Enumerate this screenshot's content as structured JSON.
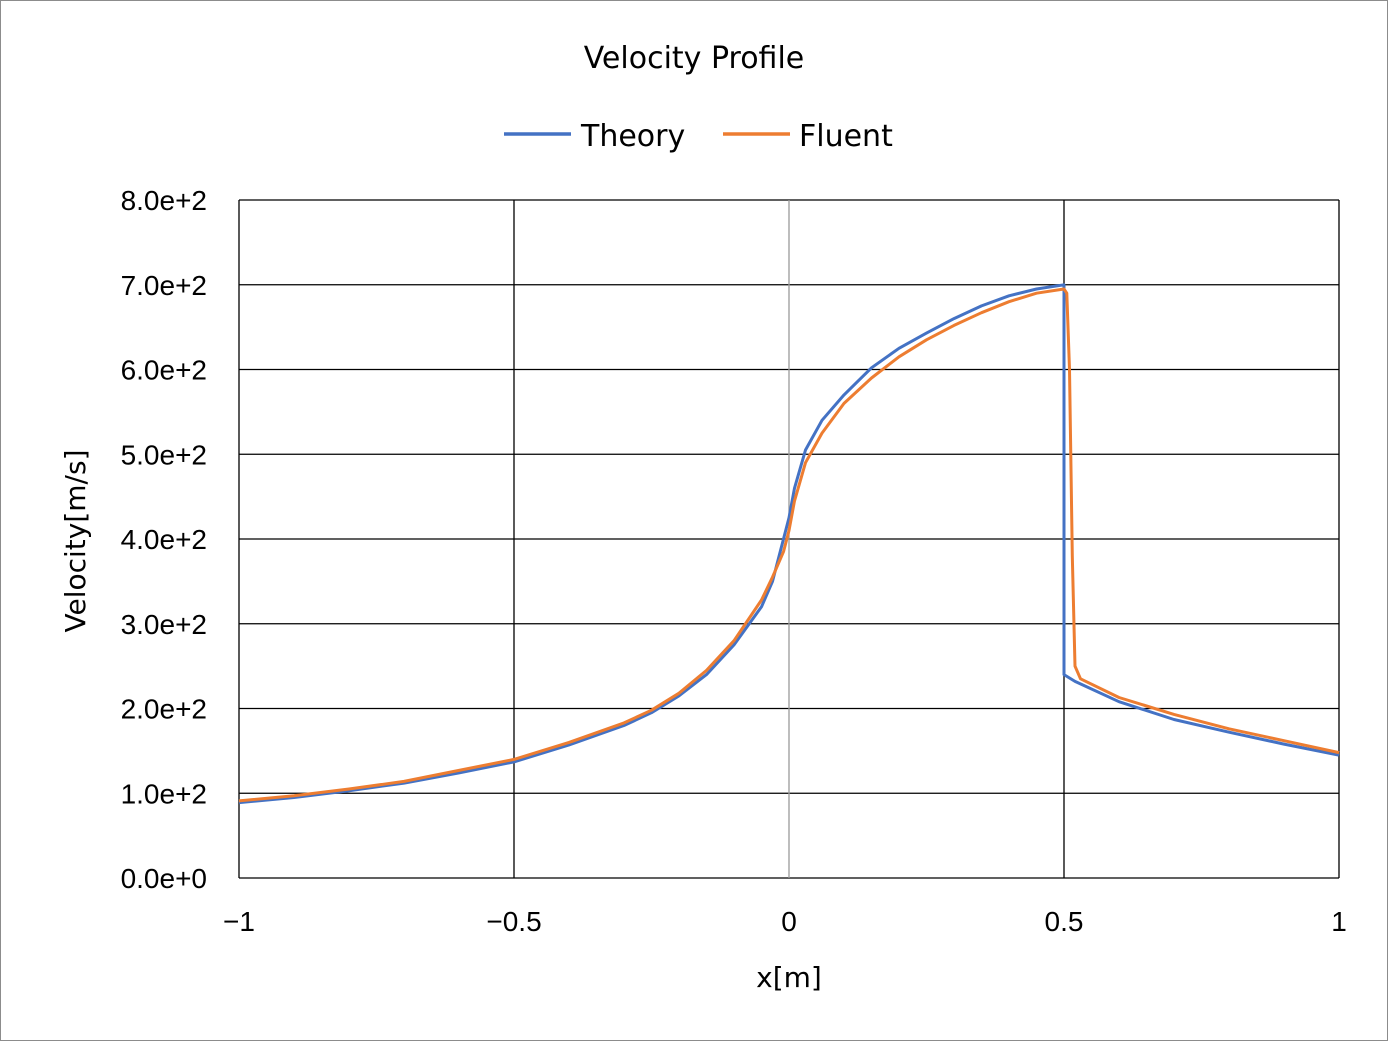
{
  "chart_data": {
    "type": "line",
    "title": "Velocity Profile",
    "xlabel": "x[m]",
    "ylabel": "Velocity[m/s]",
    "xlim": [
      -1,
      1
    ],
    "ylim": [
      0,
      800
    ],
    "x_ticks": [
      -1,
      -0.5,
      0,
      0.5,
      1
    ],
    "x_tick_labels": [
      "−1",
      "−0.5",
      "0",
      "0.5",
      "1"
    ],
    "y_ticks": [
      0,
      100,
      200,
      300,
      400,
      500,
      600,
      700,
      800
    ],
    "y_tick_labels": [
      "0.0e+0",
      "1.0e+2",
      "2.0e+2",
      "3.0e+2",
      "4.0e+2",
      "5.0e+2",
      "6.0e+2",
      "7.0e+2",
      "8.0e+2"
    ],
    "grid": true,
    "legend_position": "top",
    "series": [
      {
        "name": "Theory",
        "color": "#4472C4",
        "x": [
          -1,
          -0.9,
          -0.8,
          -0.7,
          -0.6,
          -0.5,
          -0.4,
          -0.3,
          -0.25,
          -0.2,
          -0.15,
          -0.1,
          -0.05,
          -0.03,
          -0.01,
          0,
          0.01,
          0.03,
          0.06,
          0.1,
          0.15,
          0.2,
          0.25,
          0.3,
          0.35,
          0.4,
          0.45,
          0.5,
          0.5,
          0.52,
          0.6,
          0.7,
          0.8,
          0.9,
          1
        ],
        "y": [
          89,
          95,
          103,
          112,
          124,
          137,
          157,
          180,
          195,
          215,
          240,
          275,
          320,
          350,
          400,
          425,
          460,
          505,
          540,
          570,
          602,
          625,
          643,
          660,
          675,
          687,
          695,
          700,
          240,
          232,
          208,
          187,
          172,
          158,
          145
        ]
      },
      {
        "name": "Fluent",
        "color": "#ED7D31",
        "x": [
          -1,
          -0.9,
          -0.8,
          -0.7,
          -0.6,
          -0.5,
          -0.4,
          -0.3,
          -0.25,
          -0.2,
          -0.15,
          -0.1,
          -0.05,
          -0.03,
          -0.01,
          0,
          0.01,
          0.03,
          0.06,
          0.1,
          0.15,
          0.2,
          0.25,
          0.3,
          0.35,
          0.4,
          0.45,
          0.5,
          0.505,
          0.51,
          0.515,
          0.52,
          0.53,
          0.6,
          0.7,
          0.8,
          0.9,
          1
        ],
        "y": [
          91,
          97,
          105,
          114,
          127,
          140,
          160,
          183,
          198,
          218,
          245,
          280,
          328,
          355,
          385,
          410,
          445,
          490,
          525,
          560,
          590,
          615,
          635,
          652,
          667,
          680,
          690,
          695,
          690,
          600,
          380,
          250,
          235,
          213,
          193,
          176,
          162,
          148
        ]
      }
    ]
  }
}
